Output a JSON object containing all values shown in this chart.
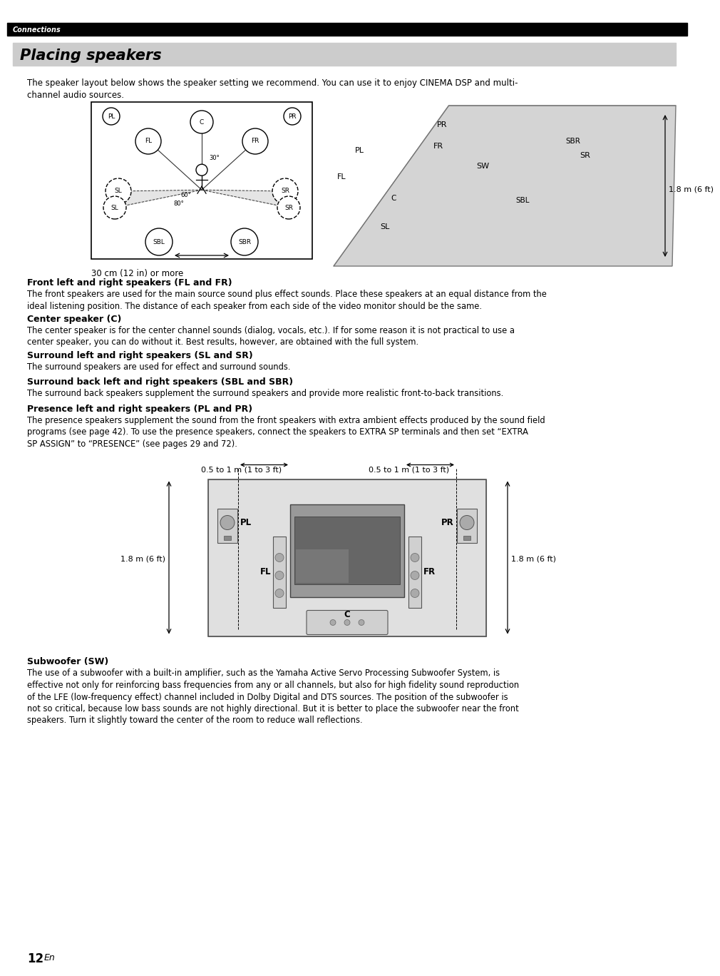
{
  "page_bg": "#ffffff",
  "header_bar_color": "#000000",
  "header_text": "Connections",
  "header_text_color": "#ffffff",
  "title_bg": "#cccccc",
  "title_text": "Placing speakers",
  "title_text_color": "#000000",
  "intro_text": "The speaker layout below shows the speaker setting we recommend. You can use it to enjoy CINEMA DSP and multi-\nchannel audio sources.",
  "section_headings": [
    "Front left and right speakers (FL and FR)",
    "Center speaker (C)",
    "Surround left and right speakers (SL and SR)",
    "Surround back left and right speakers (SBL and SBR)",
    "Presence left and right speakers (PL and PR)",
    "Subwoofer (SW)"
  ],
  "section_bodies": [
    "The front speakers are used for the main source sound plus effect sounds. Place these speakers at an equal distance from the\nideal listening position. The distance of each speaker from each side of the video monitor should be the same.",
    "The center speaker is for the center channel sounds (dialog, vocals, etc.). If for some reason it is not practical to use a\ncenter speaker, you can do without it. Best results, however, are obtained with the full system.",
    "The surround speakers are used for effect and surround sounds.",
    "The surround back speakers supplement the surround speakers and provide more realistic front-to-back transitions.",
    "The presence speakers supplement the sound from the front speakers with extra ambient effects produced by the sound field\nprograms (see page 42). To use the presence speakers, connect the speakers to EXTRA SP terminals and then set “EXTRA\nSP ASSIGN” to “PRESENCE” (see pages 29 and 72).",
    "The use of a subwoofer with a built-in amplifier, such as the Yamaha Active Servo Processing Subwoofer System, is\neffective not only for reinforcing bass frequencies from any or all channels, but also for high fidelity sound reproduction\nof the LFE (low-frequency effect) channel included in Dolby Digital and DTS sources. The position of the subwoofer is\nnot so critical, because low bass sounds are not highly directional. But it is better to place the subwoofer near the front\nspeakers. Turn it slightly toward the center of the room to reduce wall reflections."
  ],
  "page_num": "12",
  "page_num_suffix": "En",
  "diagram1_caption": "30 cm (12 in) or more",
  "diagram2_caption_right": "1.8 m (6 ft)",
  "presence_label_left": "1.8 m (6 ft)",
  "presence_label_right": "1.8 m (6 ft)",
  "presence_top_left": "0.5 to 1 m (1 to 3 ft)",
  "presence_top_right": "0.5 to 1 m (1 to 3 ft)"
}
